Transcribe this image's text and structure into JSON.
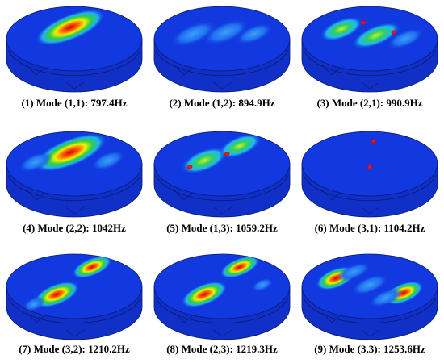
{
  "figure": {
    "panels": [
      {
        "caption": "(1)  Mode (1,1): 797.4Hz"
      },
      {
        "caption": "(2)  Mode (1,2): 894.9Hz"
      },
      {
        "caption": "(3)  Mode (2,1): 990.9Hz"
      },
      {
        "caption": "(4)  Mode (2,2): 1042Hz"
      },
      {
        "caption": "(5)  Mode (1,3): 1059.2Hz"
      },
      {
        "caption": "(6)  Mode (3,1): 1104.2Hz"
      },
      {
        "caption": "(7)  Mode (3,2): 1210.2Hz"
      },
      {
        "caption": "(8)  Mode (2,3): 1219.3Hz"
      },
      {
        "caption": "(9)  Mode (3,3): 1253.6Hz"
      }
    ]
  }
}
